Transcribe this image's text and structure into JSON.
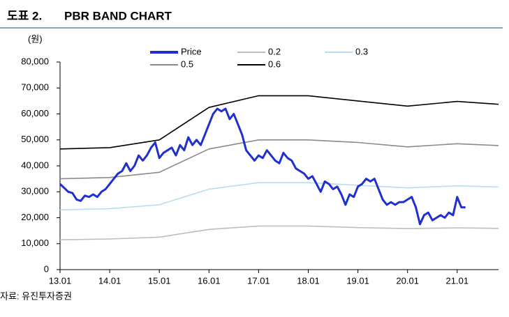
{
  "header": {
    "label": "도표 2.",
    "title": "PBR BAND CHART"
  },
  "source": "자료: 유진투자증권",
  "chart_data": {
    "type": "line",
    "y_unit": "(원)",
    "ylim": [
      0,
      80000
    ],
    "yticks": [
      0,
      {
        "value": 10000,
        "label": "10,000"
      },
      {
        "value": 20000,
        "label": "20,000"
      },
      {
        "value": 30000,
        "label": "30,000"
      },
      {
        "value": 40000,
        "label": "40,000"
      },
      {
        "value": 50000,
        "label": "50,000"
      },
      {
        "value": 60000,
        "label": "60,000"
      },
      {
        "value": 70000,
        "label": "70,000"
      },
      {
        "value": 80000,
        "label": "80,000"
      }
    ],
    "xticks": [
      "13.01",
      "14.01",
      "15.01",
      "16.01",
      "17.01",
      "18.01",
      "19.01",
      "20.01",
      "21.01"
    ],
    "xlim": [
      "13.01",
      "21.11"
    ],
    "series": [
      {
        "name": "Price",
        "color": "#1f2fd0",
        "x": [
          "13.01",
          "13.02",
          "13.03",
          "13.04",
          "13.05",
          "13.06",
          "13.07",
          "13.08",
          "13.09",
          "13.10",
          "13.11",
          "13.12",
          "14.01",
          "14.02",
          "14.03",
          "14.04",
          "14.05",
          "14.06",
          "14.07",
          "14.08",
          "14.09",
          "14.10",
          "14.11",
          "14.12",
          "15.01",
          "15.02",
          "15.03",
          "15.04",
          "15.05",
          "15.06",
          "15.07",
          "15.08",
          "15.09",
          "15.10",
          "15.11",
          "15.12",
          "16.01",
          "16.02",
          "16.03",
          "16.04",
          "16.05",
          "16.06",
          "16.07",
          "16.08",
          "16.09",
          "16.10",
          "16.11",
          "16.12",
          "17.01",
          "17.02",
          "17.03",
          "17.04",
          "17.05",
          "17.06",
          "17.07",
          "17.08",
          "17.09",
          "17.10",
          "17.11",
          "17.12",
          "18.01",
          "18.02",
          "18.03",
          "18.04",
          "18.05",
          "18.06",
          "18.07",
          "18.08",
          "18.09",
          "18.10",
          "18.11",
          "18.12",
          "19.01",
          "19.02",
          "19.03",
          "19.04",
          "19.05",
          "19.06",
          "19.07",
          "19.08",
          "19.09",
          "19.10",
          "19.11",
          "19.12",
          "20.01",
          "20.02",
          "20.03",
          "20.04",
          "20.05",
          "20.06",
          "20.07",
          "20.08",
          "20.09",
          "20.10",
          "20.11",
          "20.12",
          "21.01",
          "21.02",
          "21.03"
        ],
        "values": [
          33000,
          31500,
          30000,
          29500,
          27000,
          26500,
          28500,
          28000,
          29000,
          28000,
          30000,
          31000,
          33000,
          35000,
          37000,
          38000,
          41000,
          38000,
          40000,
          44000,
          42000,
          44000,
          47000,
          49000,
          43000,
          45000,
          46000,
          47000,
          44000,
          48000,
          46000,
          51000,
          48000,
          50000,
          48000,
          52000,
          56000,
          60000,
          62000,
          61000,
          62000,
          58000,
          60000,
          56000,
          52000,
          46000,
          44000,
          42000,
          44000,
          43000,
          46000,
          44000,
          42000,
          41000,
          45000,
          43000,
          42000,
          39000,
          38000,
          37000,
          35000,
          36000,
          33000,
          30000,
          34000,
          33000,
          31000,
          32000,
          29000,
          25000,
          29000,
          28000,
          32000,
          33000,
          35000,
          34000,
          35000,
          31000,
          27000,
          25000,
          26000,
          25000,
          26000,
          26000,
          27000,
          28000,
          24000,
          17500,
          21000,
          22000,
          19000,
          20000,
          21000,
          20000,
          22000,
          21000,
          28000,
          24000,
          24000
        ]
      },
      {
        "name": "0.2",
        "color": "#bdbdbd",
        "x": [
          "13.01",
          "14.01",
          "15.01",
          "16.01",
          "17.01",
          "18.01",
          "19.01",
          "20.01",
          "21.01",
          "21.11"
        ],
        "values": [
          11500,
          11800,
          12500,
          15500,
          16800,
          16800,
          16200,
          15800,
          16100,
          15900
        ]
      },
      {
        "name": "0.3",
        "color": "#b9dcf2",
        "x": [
          "13.01",
          "14.01",
          "15.01",
          "16.01",
          "17.01",
          "18.01",
          "19.01",
          "20.01",
          "21.01",
          "21.11"
        ],
        "values": [
          23000,
          23500,
          25000,
          31000,
          33500,
          33500,
          32500,
          31500,
          32300,
          31800
        ]
      },
      {
        "name": "0.5",
        "color": "#8a8a8a",
        "x": [
          "13.01",
          "14.01",
          "15.01",
          "16.01",
          "17.01",
          "18.01",
          "19.01",
          "20.01",
          "21.01",
          "21.11"
        ],
        "values": [
          35000,
          35500,
          37500,
          46500,
          50000,
          50000,
          49000,
          47300,
          48500,
          47800
        ]
      },
      {
        "name": "0.6",
        "color": "#000000",
        "x": [
          "13.01",
          "14.01",
          "15.01",
          "16.01",
          "17.01",
          "18.01",
          "19.01",
          "20.01",
          "21.01",
          "21.11"
        ],
        "values": [
          46500,
          47000,
          50000,
          62500,
          67000,
          67000,
          65000,
          63000,
          64800,
          63700
        ]
      }
    ]
  }
}
